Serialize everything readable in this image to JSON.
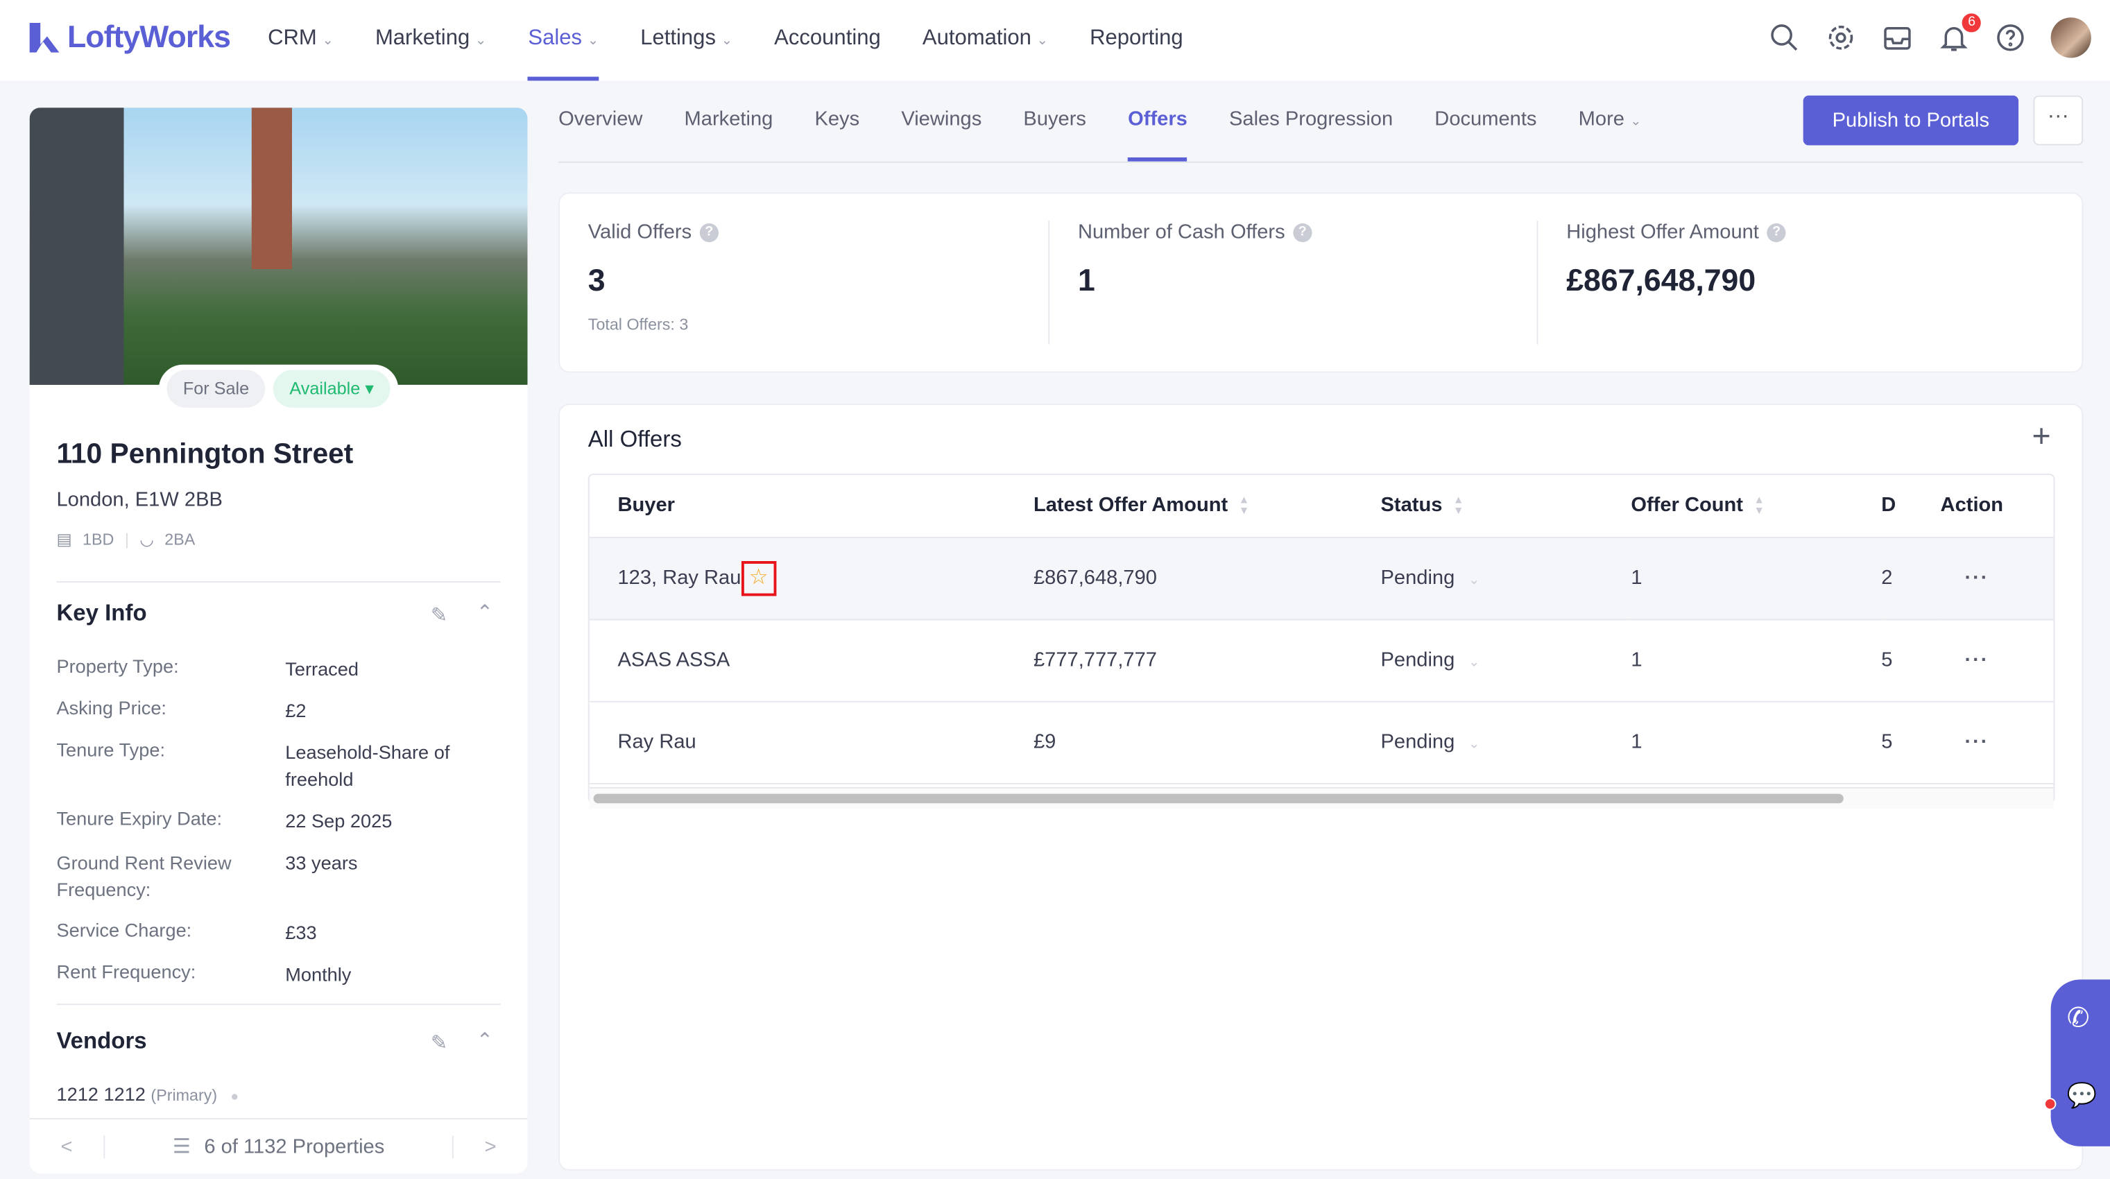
{
  "brand": {
    "name": "LoftyWorks",
    "accent": "#5b5fd6"
  },
  "topnav": {
    "items": [
      {
        "label": "CRM",
        "dropdown": true
      },
      {
        "label": "Marketing",
        "dropdown": true
      },
      {
        "label": "Sales",
        "dropdown": true,
        "active": true
      },
      {
        "label": "Lettings",
        "dropdown": true
      },
      {
        "label": "Accounting",
        "dropdown": false
      },
      {
        "label": "Automation",
        "dropdown": true
      },
      {
        "label": "Reporting",
        "dropdown": false
      }
    ],
    "notification_count": "6"
  },
  "property": {
    "sale_status": "For Sale",
    "availability": "Available",
    "address": "110 Pennington Street",
    "city": "London, E1W 2BB",
    "beds": "1BD",
    "baths": "2BA",
    "key_info_title": "Key Info",
    "key_info": [
      {
        "k": "Property Type:",
        "v": "Terraced"
      },
      {
        "k": "Asking Price:",
        "v": "£2"
      },
      {
        "k": "Tenure Type:",
        "v": "Leasehold-Share of freehold"
      },
      {
        "k": "Tenure Expiry Date:",
        "v": "22 Sep 2025"
      },
      {
        "k": "Ground Rent Review Frequency:",
        "v": "33 years"
      },
      {
        "k": "Service Charge:",
        "v": "£33"
      },
      {
        "k": "Rent Frequency:",
        "v": "Monthly"
      }
    ],
    "vendors_title": "Vendors",
    "vendor_name": "1212 1212",
    "vendor_tag": "(Primary)",
    "pager": "6 of 1132 Properties"
  },
  "tabs": [
    {
      "label": "Overview"
    },
    {
      "label": "Marketing"
    },
    {
      "label": "Keys"
    },
    {
      "label": "Viewings"
    },
    {
      "label": "Buyers"
    },
    {
      "label": "Offers",
      "active": true
    },
    {
      "label": "Sales Progression"
    },
    {
      "label": "Documents"
    },
    {
      "label": "More"
    }
  ],
  "publish_label": "Publish to Portals",
  "stats": [
    {
      "label": "Valid Offers",
      "value": "3",
      "sub": "Total Offers: 3"
    },
    {
      "label": "Number of Cash Offers",
      "value": "1"
    },
    {
      "label": "Highest Offer Amount",
      "value": "£867,648,790"
    }
  ],
  "offers": {
    "title": "All Offers",
    "columns": [
      "Buyer",
      "Latest Offer Amount",
      "Status",
      "Offer Count",
      "D",
      "Action"
    ],
    "rows": [
      {
        "buyer": "123, Ray Rau",
        "starred": true,
        "amount": "£867,648,790",
        "status": "Pending",
        "count": "1",
        "d": "2"
      },
      {
        "buyer": "ASAS ASSA",
        "amount": "£777,777,777",
        "status": "Pending",
        "count": "1",
        "d": "5"
      },
      {
        "buyer": "Ray Rau",
        "amount": "£9",
        "status": "Pending",
        "count": "1",
        "d": "5"
      }
    ]
  }
}
